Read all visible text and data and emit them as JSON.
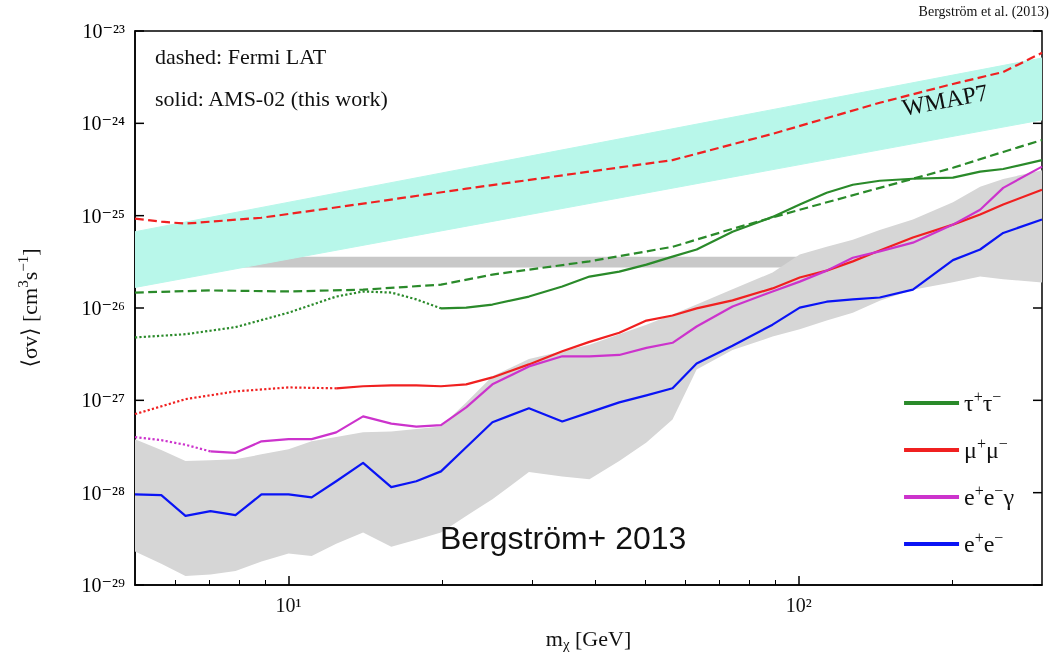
{
  "chart_data": {
    "type": "line",
    "xlabel": "m$_{χ}$ [GeV]",
    "ylabel": "⟨σv⟩ [cm$^{3}$s$^{−1}$]",
    "annotations": [
      "dashed: Fermi LAT",
      "solid: AMS-02 (this work)",
      "Bergström et al. (2013)",
      "Bergström+ 2013",
      "WMAP7"
    ],
    "log": "xy",
    "xlim": [
      5,
      300
    ],
    "ylim": [
      1e-29,
      1e-23
    ],
    "xticks": [
      {
        "value": 10,
        "label": "10¹"
      },
      {
        "value": 100,
        "label": "10²"
      }
    ],
    "yticks": [
      {
        "value": 1e-29,
        "label": "10⁻²⁹"
      },
      {
        "value": 1e-28,
        "label": "10⁻²⁸"
      },
      {
        "value": 1e-27,
        "label": "10⁻²⁷"
      },
      {
        "value": 1e-26,
        "label": "10⁻²⁶"
      },
      {
        "value": 1e-25,
        "label": "10⁻²⁵"
      },
      {
        "value": 1e-24,
        "label": "10⁻²⁴"
      },
      {
        "value": 1e-23,
        "label": "10⁻²³"
      }
    ],
    "marker": "none",
    "line_style": "solid",
    "legend": "bottom right",
    "bands": [
      {
        "axis": "y",
        "from": 2.74e-26,
        "to": 3.6e-26,
        "color": "#c8c8c8"
      }
    ],
    "series": [
      {
        "type": "area",
        "color": "#b8f7ea",
        "x": [
          5,
          300
        ],
        "values": [
          null,
          null
        ],
        "lower": [
          1.67e-26,
          1.09e-24
        ],
        "upper": [
          6.7e-26,
          5.1e-24
        ]
      },
      {
        "type": "line",
        "line_style": "dashed",
        "color": "#2a8a2a",
        "x": [
          5,
          7.03,
          10,
          14.0,
          19.9,
          25.1,
          38.9,
          56.6,
          74.2,
          100.5,
          144.2,
          200.7,
          251.8,
          300
        ],
        "values": [
          1.47e-26,
          1.55e-26,
          1.51e-26,
          1.58e-26,
          1.79e-26,
          2.3e-26,
          3.2e-26,
          4.6e-26,
          7.2e-26,
          1.16e-25,
          2e-25,
          3.3e-25,
          4.9e-25,
          6.6e-25
        ]
      },
      {
        "type": "line",
        "line_style": "dashed",
        "color": "#f02020",
        "x": [
          5,
          5.63,
          6.28,
          8.85,
          14.0,
          22.3,
          38.9,
          56.6,
          88.9,
          144.2,
          200.7,
          251.8,
          300
        ],
        "values": [
          9.3e-26,
          8.6e-26,
          8.2e-26,
          9.5e-26,
          1.35e-25,
          1.96e-25,
          3e-25,
          4e-25,
          7.7e-25,
          1.67e-24,
          2.67e-24,
          3.6e-24,
          5.8e-24
        ]
      },
      {
        "type": "line",
        "line_style": "dotted",
        "color": "#2a8a2a",
        "x": [
          5,
          6.28,
          7.87,
          10,
          12.4,
          14.0,
          15.9,
          17.8,
          19.9
        ],
        "values": [
          4.8e-27,
          5.2e-27,
          6.2e-27,
          8.9e-27,
          1.33e-26,
          1.51e-26,
          1.47e-26,
          1.24e-26,
          9.9e-27
        ]
      },
      {
        "name": "τ$^{+}$τ$^{−}$",
        "color": "#2a8a2a",
        "x": [
          19.9,
          22.3,
          25.1,
          29.6,
          34.4,
          38.9,
          44.5,
          50.3,
          56.6,
          63.1,
          74.2,
          88.9,
          100.5,
          113.5,
          127.7,
          144.2,
          167.5,
          200.7,
          226.9,
          251.8,
          300
        ],
        "values": [
          9.9e-27,
          1.01e-26,
          1.09e-26,
          1.33e-26,
          1.71e-26,
          2.19e-26,
          2.48e-26,
          2.95e-26,
          3.6e-26,
          4.3e-26,
          6.7e-26,
          9.7e-26,
          1.32e-25,
          1.77e-25,
          2.16e-25,
          2.39e-25,
          2.51e-25,
          2.58e-25,
          3e-25,
          3.2e-25,
          4e-25
        ]
      },
      {
        "type": "line",
        "line_style": "dotted",
        "color": "#f02020",
        "x": [
          5,
          6.28,
          7.87,
          10,
          12.4
        ],
        "values": [
          7.1e-28,
          1.03e-27,
          1.25e-27,
          1.38e-27,
          1.35e-27
        ]
      },
      {
        "name": "μ$^{+}$μ$^{−}$",
        "color": "#f02020",
        "x": [
          12.4,
          14.0,
          15.9,
          17.8,
          19.9,
          22.3,
          25.1,
          29.6,
          34.4,
          38.9,
          44.5,
          50.3,
          56.6,
          63.1,
          74.2,
          88.9,
          100.5,
          113.5,
          127.7,
          144.2,
          167.5,
          200.7,
          226.9,
          251.8,
          300
        ],
        "values": [
          1.35e-27,
          1.42e-27,
          1.45e-27,
          1.45e-27,
          1.42e-27,
          1.49e-27,
          1.77e-27,
          2.45e-27,
          3.4e-27,
          4.3e-27,
          5.4e-27,
          7.3e-27,
          8.3e-27,
          9.9e-27,
          1.21e-26,
          1.63e-26,
          2.14e-26,
          2.54e-26,
          3.2e-26,
          4.2e-26,
          5.8e-26,
          8e-26,
          1.03e-25,
          1.32e-25,
          1.91e-25
        ]
      },
      {
        "type": "line",
        "line_style": "dotted",
        "color": "#cc33cc",
        "x": [
          5,
          5.63,
          6.28,
          7.03
        ],
        "values": [
          4e-28,
          3.7e-28,
          3.3e-28,
          2.8e-28
        ]
      },
      {
        "name": "e$^{+}$e$^{−}$γ",
        "color": "#cc33cc",
        "x": [
          7.03,
          7.87,
          8.85,
          10,
          11.1,
          12.4,
          14.0,
          15.9,
          17.8,
          19.9,
          22.3,
          25.1,
          29.6,
          34.4,
          38.9,
          44.5,
          50.3,
          56.6,
          63.1,
          74.2,
          88.9,
          100.5,
          113.5,
          127.7,
          144.2,
          167.5,
          200.7,
          226.9,
          251.8,
          300
        ],
        "values": [
          2.8e-28,
          2.7e-28,
          3.6e-28,
          3.8e-28,
          3.8e-28,
          4.5e-28,
          6.7e-28,
          5.6e-28,
          5.2e-28,
          5.4e-28,
          8.4e-28,
          1.49e-27,
          2.33e-27,
          3e-27,
          3e-27,
          3.1e-27,
          3.7e-27,
          4.2e-27,
          6.3e-27,
          1.04e-26,
          1.51e-26,
          1.93e-26,
          2.54e-26,
          3.5e-26,
          4.1e-26,
          5.1e-26,
          8e-26,
          1.16e-25,
          2e-25,
          3.4e-25
        ]
      },
      {
        "name": "e$^{+}$e$^{−}$",
        "color": "#0a14f5",
        "x": [
          5,
          5.63,
          6.28,
          7.03,
          7.87,
          8.85,
          10,
          11.1,
          12.4,
          14.0,
          15.9,
          17.8,
          19.9,
          22.3,
          25.1,
          29.6,
          34.4,
          38.9,
          44.5,
          50.3,
          56.6,
          63.1,
          74.2,
          88.9,
          100.5,
          113.5,
          127.7,
          144.2,
          167.5,
          200.7,
          226.9,
          251.8,
          300
        ],
        "values": [
          9.6e-29,
          9.4e-29,
          5.6e-29,
          6.3e-29,
          5.7e-29,
          9.6e-29,
          9.6e-29,
          8.9e-29,
          1.33e-28,
          2.1e-28,
          1.15e-28,
          1.33e-28,
          1.7e-28,
          3.1e-28,
          5.8e-28,
          8.2e-28,
          5.9e-28,
          7.4e-28,
          9.5e-28,
          1.13e-27,
          1.35e-27,
          2.5e-27,
          3.9e-27,
          6.6e-27,
          1.01e-26,
          1.17e-26,
          1.24e-26,
          1.3e-26,
          1.58e-26,
          3.3e-26,
          4.3e-26,
          6.5e-26,
          9.1e-26
        ],
        "lower": [
          2.3e-29,
          1.7e-29,
          1.25e-29,
          1.3e-29,
          1.42e-29,
          1.8e-29,
          2.2e-29,
          2.06e-29,
          2.8e-29,
          3.7e-29,
          2.6e-29,
          3.1e-29,
          3.7e-29,
          5.6e-29,
          8.5e-29,
          1.67e-28,
          1.5e-28,
          1.4e-28,
          2.2e-28,
          3.5e-28,
          6.2e-28,
          2.16e-27,
          3.5e-27,
          4.9e-27,
          5.9e-27,
          7.3e-27,
          8.9e-27,
          1.2e-26,
          1.58e-26,
          1.9e-26,
          2.19e-26,
          2.05e-26,
          1.89e-26
        ],
        "upper": [
          3.8e-28,
          2.9e-28,
          2.2e-28,
          2.25e-28,
          2.3e-28,
          2.6e-28,
          2.95e-28,
          3.6e-28,
          4e-28,
          4.5e-28,
          4.6e-28,
          4.9e-28,
          5.2e-28,
          9.5e-28,
          1.82e-27,
          2.8e-27,
          3.4e-27,
          4e-27,
          5.2e-27,
          6.6e-27,
          8.5e-27,
          1.09e-26,
          1.6e-26,
          2.42e-26,
          3.8e-26,
          4.6e-26,
          5.5e-26,
          7e-26,
          9.1e-26,
          1.4e-25,
          2.06e-25,
          2.5e-25,
          3.1e-25
        ]
      }
    ]
  }
}
